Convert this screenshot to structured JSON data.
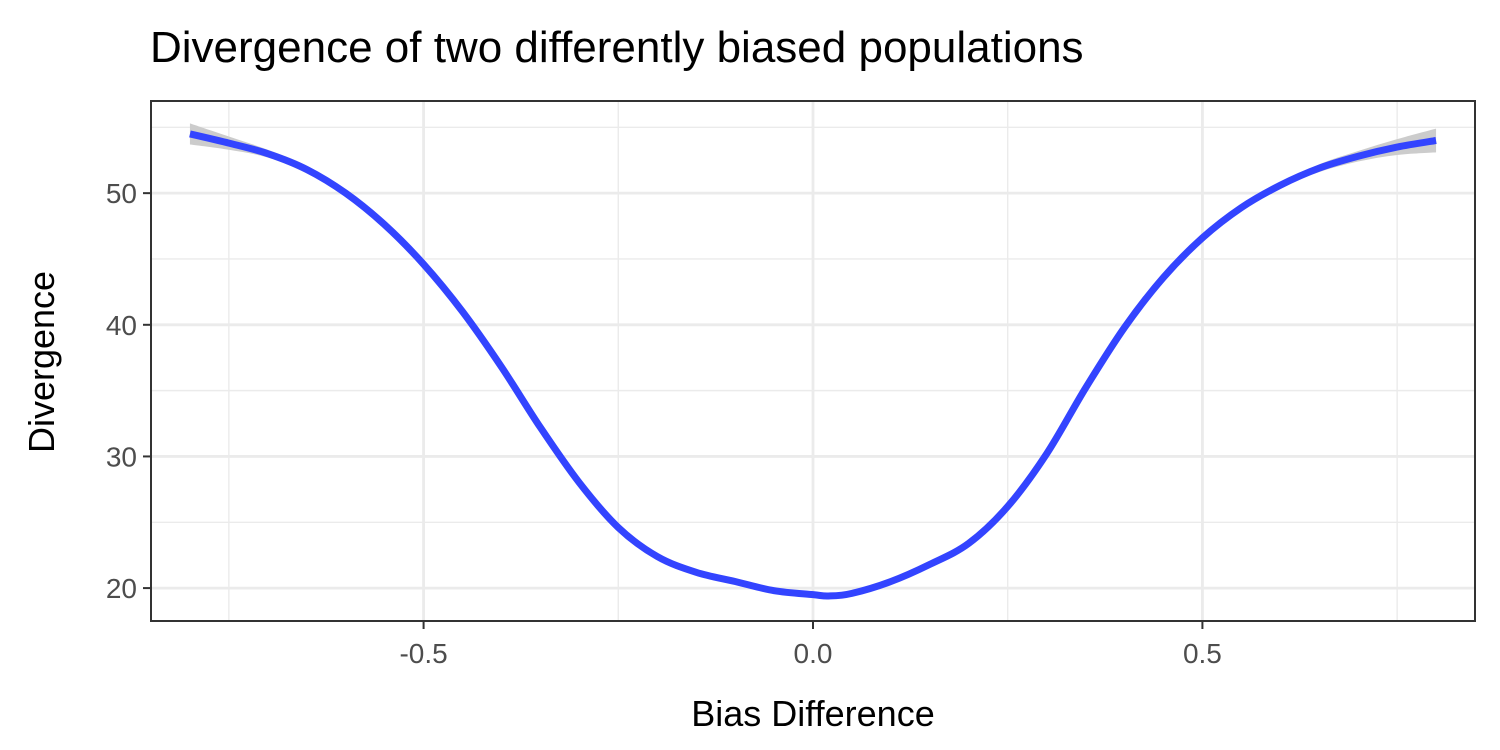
{
  "chart_data": {
    "type": "line",
    "title": "Divergence of two differently biased populations",
    "xlabel": "Bias Difference",
    "ylabel": "Divergence",
    "xlim": [
      -0.85,
      0.85
    ],
    "ylim": [
      17.5,
      57.0
    ],
    "x_ticks": [
      -0.5,
      0.0,
      0.5
    ],
    "x_tick_labels": [
      "-0.5",
      "0.0",
      "0.5"
    ],
    "y_ticks": [
      20,
      30,
      40,
      50
    ],
    "y_tick_labels": [
      "20",
      "30",
      "40",
      "50"
    ],
    "x_minor_ticks": [
      -0.75,
      -0.25,
      0.25,
      0.75
    ],
    "y_minor_ticks": [
      25,
      35,
      45,
      55
    ],
    "grid": true,
    "series": [
      {
        "color": "#3344ff",
        "band_color": "#cccccc",
        "x": [
          -0.8,
          -0.75,
          -0.7,
          -0.65,
          -0.6,
          -0.55,
          -0.5,
          -0.45,
          -0.4,
          -0.35,
          -0.3,
          -0.25,
          -0.2,
          -0.15,
          -0.1,
          -0.05,
          0.0,
          0.02,
          0.05,
          0.1,
          0.15,
          0.2,
          0.25,
          0.3,
          0.35,
          0.4,
          0.45,
          0.5,
          0.55,
          0.6,
          0.65,
          0.7,
          0.75,
          0.8
        ],
        "y": [
          54.5,
          53.8,
          53.0,
          51.8,
          50.0,
          47.6,
          44.6,
          41.0,
          36.8,
          32.2,
          28.0,
          24.6,
          22.4,
          21.2,
          20.5,
          19.8,
          19.5,
          19.4,
          19.6,
          20.5,
          21.8,
          23.4,
          26.2,
          30.2,
          35.2,
          39.8,
          43.6,
          46.6,
          48.9,
          50.6,
          51.9,
          52.8,
          53.5,
          54.0
        ],
        "lower": [
          53.7,
          53.3,
          52.7,
          51.5,
          49.8,
          47.4,
          44.4,
          40.8,
          36.6,
          32.0,
          27.8,
          24.4,
          22.2,
          21.0,
          20.3,
          19.6,
          19.3,
          19.2,
          19.4,
          20.3,
          21.6,
          23.2,
          26.0,
          30.0,
          35.0,
          39.6,
          43.4,
          46.4,
          48.7,
          50.4,
          51.6,
          52.4,
          52.9,
          53.1
        ],
        "upper": [
          55.3,
          54.3,
          53.3,
          52.1,
          50.2,
          47.8,
          44.8,
          41.2,
          37.0,
          32.4,
          28.2,
          24.8,
          22.6,
          21.4,
          20.7,
          20.0,
          19.7,
          19.6,
          19.8,
          20.7,
          22.0,
          23.6,
          26.4,
          30.4,
          35.4,
          40.0,
          43.8,
          46.8,
          49.1,
          50.8,
          52.2,
          53.2,
          54.1,
          54.9
        ]
      }
    ]
  }
}
